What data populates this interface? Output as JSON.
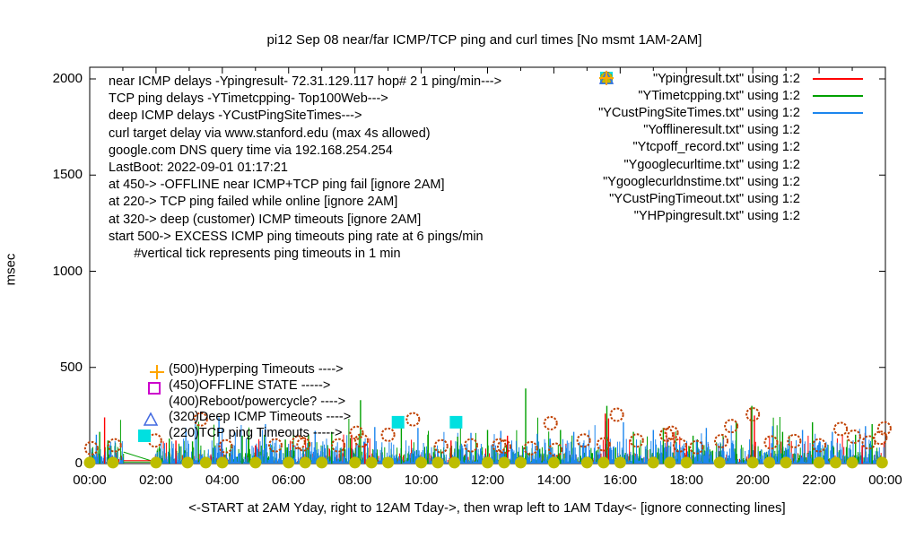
{
  "title": "pi12 Sep 08  near/far ICMP/TCP ping and curl times [No msmt 1AM-2AM]",
  "y_axis": {
    "label": "msec",
    "ticks": [
      0,
      500,
      1000,
      1500,
      2000
    ]
  },
  "x_axis": {
    "caption": "<-START at 2AM Yday, right to 12AM Tday->, then wrap left to 1AM Tday<- [ignore connecting lines]",
    "ticklabels": [
      "00:00",
      "02:00",
      "04:00",
      "06:00",
      "08:00",
      "10:00",
      "12:00",
      "14:00",
      "16:00",
      "18:00",
      "20:00",
      "22:00",
      "00:00"
    ]
  },
  "info_lines": [
    "near ICMP delays -Ypingresult- 72.31.129.117 hop# 2 1 ping/min--->",
    "TCP ping delays -YTimetcpping- Top100Web--->",
    "deep ICMP delays -YCustPingSiteTimes--->",
    "curl target delay via www.stanford.edu (max 4s allowed)",
    "google.com DNS query time via 192.168.254.254",
    "LastBoot: 2022-09-01 01:17:21",
    "at 450-> -OFFLINE near ICMP+TCP ping fail [ignore 2AM]",
    "at 220-> TCP ping failed while online [ignore 2AM]",
    "at 320-> deep (customer) ICMP timeouts [ignore 2AM]",
    "start 500-> EXCESS ICMP ping timeouts ping rate at 6 pings/min",
    "       #vertical tick represents ping timeouts in 1 min"
  ],
  "ladder": [
    {
      "text": "(500)Hyperping Timeouts ---->",
      "marker": "plus",
      "color": "#ffa500",
      "h_marker": 2.03,
      "msec": 487
    },
    {
      "text": "(450)OFFLINE STATE ----->",
      "marker": "open-square",
      "color": "#cc00cc",
      "h_marker": 1.95,
      "msec": 403
    },
    {
      "text": "(400)Reboot/powercycle? ---->",
      "marker": null,
      "color": null,
      "h_marker": null,
      "msec": 319
    },
    {
      "text": "(320)Deep ICMP Timeouts ---->",
      "marker": "open-triangle",
      "color": "#4169e1",
      "h_marker": 1.84,
      "msec": 237
    },
    {
      "text": "(220)TCP ping Timeouts ----->",
      "marker": "filled-square",
      "color": "#00e0e0",
      "h_marker": 1.66,
      "msec": 153
    }
  ],
  "legend": [
    {
      "label": "\"Ypingresult.txt\" using 1:2",
      "marker": "line",
      "color": "#ff0000"
    },
    {
      "label": "\"YTimetcpping.txt\" using 1:2",
      "marker": "line",
      "color": "#00a000"
    },
    {
      "label": "\"YCustPingSiteTimes.txt\" using 1:2",
      "marker": "line",
      "color": "#1c86ee"
    },
    {
      "label": "\"Yofflineresult.txt\" using 1:2",
      "marker": "open-square",
      "color": "#cc00cc"
    },
    {
      "label": "\"Ytcpoff_record.txt\" using 1:2",
      "marker": "filled-square",
      "color": "#00e0e0"
    },
    {
      "label": "\"Ygooglecurltime.txt\" using 1:2",
      "marker": "open-circle",
      "color": "#c04000"
    },
    {
      "label": "\"Ygooglecurldnstime.txt\" using 1:2",
      "marker": "filled-circle",
      "color": "#bdbd00"
    },
    {
      "label": "\"YCustPingTimeout.txt\" using 1:2",
      "marker": "open-triangle",
      "color": "#4169e1"
    },
    {
      "label": "\"YHPpingresult.txt\" using 1:2",
      "marker": "plus",
      "color": "#ffa500"
    }
  ],
  "chart_data": {
    "type": "line",
    "x_unit": "hours",
    "xlim_hours": [
      0,
      24
    ],
    "ylim": [
      0,
      2000
    ],
    "ylabel": "msec",
    "grid": false,
    "legend_position": "top-right",
    "no_measurement_gap_hours": [
      1.02,
      1.97
    ],
    "noise_model": {
      "seed": 42,
      "step_hours": 0.022,
      "series": [
        {
          "name": "near-icmp-ping",
          "color": "#ff0000",
          "base": 2,
          "amp": 55,
          "pow": 3.0,
          "p_big": 0.05,
          "amp_big": 150
        },
        {
          "name": "tcp-ping",
          "color": "#00a000",
          "base": 3,
          "amp": 95,
          "pow": 2.6,
          "p_big": 0.06,
          "amp_big": 190
        },
        {
          "name": "deep-icmp-ping",
          "color": "#1c86ee",
          "base": 5,
          "amp": 125,
          "pow": 2.2,
          "p_big": 0.05,
          "amp_big": 115
        }
      ]
    },
    "peaks": {
      "near_icmp": [
        [
          0.45,
          240
        ],
        [
          2.6,
          120
        ],
        [
          5.0,
          95
        ],
        [
          7.9,
          150
        ],
        [
          8.3,
          105
        ],
        [
          10.9,
          120
        ],
        [
          12.6,
          145
        ],
        [
          15.55,
          260
        ],
        [
          15.65,
          235
        ],
        [
          18.0,
          105
        ],
        [
          19.95,
          285
        ],
        [
          20.05,
          250
        ],
        [
          23.3,
          95
        ]
      ],
      "tcp_ping": [
        [
          0.3,
          165
        ],
        [
          0.55,
          120
        ],
        [
          2.4,
          130
        ],
        [
          3.1,
          115
        ],
        [
          4.6,
          145
        ],
        [
          5.9,
          125
        ],
        [
          6.6,
          150
        ],
        [
          7.3,
          165
        ],
        [
          8.17,
          330
        ],
        [
          9.4,
          185
        ],
        [
          10.2,
          150
        ],
        [
          11.1,
          140
        ],
        [
          12.0,
          175
        ],
        [
          13.15,
          390
        ],
        [
          14.2,
          175
        ],
        [
          15.6,
          300
        ],
        [
          16.4,
          165
        ],
        [
          17.3,
          185
        ],
        [
          18.2,
          145
        ],
        [
          19.5,
          215
        ],
        [
          19.97,
          300
        ],
        [
          20.9,
          165
        ],
        [
          21.8,
          215
        ],
        [
          23.1,
          150
        ],
        [
          23.6,
          205
        ]
      ],
      "deep_icmp": [
        [
          0.2,
          150
        ],
        [
          2.9,
          185
        ],
        [
          3.9,
          240
        ],
        [
          5.3,
          205
        ],
        [
          6.8,
          170
        ],
        [
          8.6,
          190
        ],
        [
          9.9,
          185
        ],
        [
          11.5,
          160
        ],
        [
          12.4,
          170
        ],
        [
          13.5,
          155
        ],
        [
          14.6,
          165
        ],
        [
          16.1,
          215
        ],
        [
          17.0,
          175
        ],
        [
          18.6,
          185
        ],
        [
          20.6,
          195
        ],
        [
          21.5,
          175
        ],
        [
          22.4,
          165
        ],
        [
          23.4,
          195
        ]
      ]
    },
    "scatter": {
      "curl_time_circles": [
        [
          0.05,
          80
        ],
        [
          0.75,
          95
        ],
        [
          1.97,
          120
        ],
        [
          3.35,
          230
        ],
        [
          4.1,
          90
        ],
        [
          5.6,
          95
        ],
        [
          6.3,
          110
        ],
        [
          6.45,
          100
        ],
        [
          7.5,
          95
        ],
        [
          8.05,
          160
        ],
        [
          8.2,
          120
        ],
        [
          9.0,
          150
        ],
        [
          9.75,
          230
        ],
        [
          10.6,
          90
        ],
        [
          11.5,
          95
        ],
        [
          12.35,
          95
        ],
        [
          12.5,
          88
        ],
        [
          13.3,
          80
        ],
        [
          13.9,
          210
        ],
        [
          14.05,
          72
        ],
        [
          14.9,
          120
        ],
        [
          15.5,
          100
        ],
        [
          15.9,
          254
        ],
        [
          16.5,
          120
        ],
        [
          17.4,
          150
        ],
        [
          17.55,
          160
        ],
        [
          17.8,
          95
        ],
        [
          18.3,
          85
        ],
        [
          19.05,
          117
        ],
        [
          19.35,
          195
        ],
        [
          20.0,
          256
        ],
        [
          20.55,
          110
        ],
        [
          21.25,
          117
        ],
        [
          22.0,
          95
        ],
        [
          22.65,
          180
        ],
        [
          23.05,
          140
        ],
        [
          23.5,
          110
        ],
        [
          23.85,
          134
        ],
        [
          23.97,
          183
        ]
      ],
      "dns_time_circles_hours": [
        0,
        0.7,
        2.0,
        2.95,
        3.5,
        4.0,
        5.0,
        6.0,
        6.5,
        7.0,
        8.0,
        8.5,
        9.0,
        10.0,
        10.5,
        11.0,
        12.0,
        12.5,
        13.0,
        14.0,
        15.0,
        15.5,
        16.0,
        17.0,
        17.5,
        18.0,
        19.0,
        20.0,
        20.5,
        21.0,
        22.0,
        22.5,
        23.0,
        23.9
      ],
      "dns_time_msec": 5,
      "tcp_fail_squares": [
        [
          9.3,
          215
        ],
        [
          11.05,
          215
        ]
      ]
    },
    "gap_connecting_lines": [
      {
        "color": "#00a000",
        "from": [
          1.02,
          60
        ],
        "to": [
          1.97,
          8
        ]
      },
      {
        "color": "#00a000",
        "from": [
          1.02,
          8
        ],
        "to": [
          1.97,
          8
        ]
      },
      {
        "color": "#ff0000",
        "from": [
          1.02,
          15
        ],
        "to": [
          1.97,
          15
        ]
      }
    ]
  }
}
